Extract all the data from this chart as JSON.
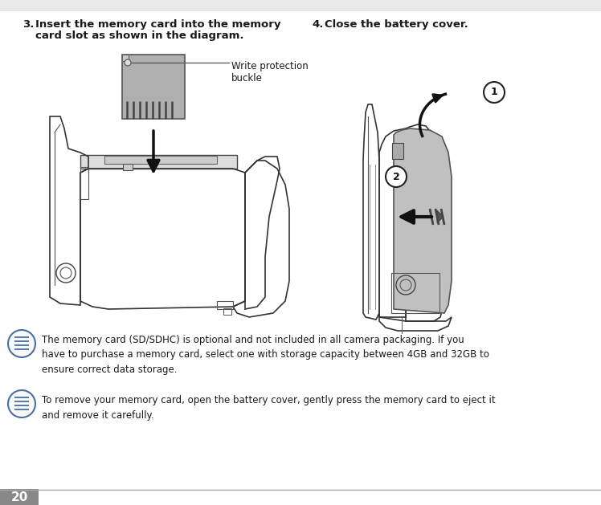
{
  "bg_color": "#ffffff",
  "top_bar_color": "#e8e8e8",
  "page_num": "20",
  "page_num_bg": "#888888",
  "text_color": "#1a1a1a",
  "icon_color": "#4a6fa5",
  "footer_line_color": "#aaaaaa",
  "gray_fill": "#aaaaaa",
  "light_gray": "#cccccc",
  "dark_line": "#222222",
  "note1_text": "The memory card (SD/SDHC) is optional and not included in all camera packaging. If you\nhave to purchase a memory card, select one with storage capacity between 4GB and 32GB to\nensure correct data storage.",
  "note2_text": "To remove your memory card, open the battery cover, gently press the memory card to eject it\nand remove it carefully.",
  "write_protection_label": "Write protection\nbuckle"
}
